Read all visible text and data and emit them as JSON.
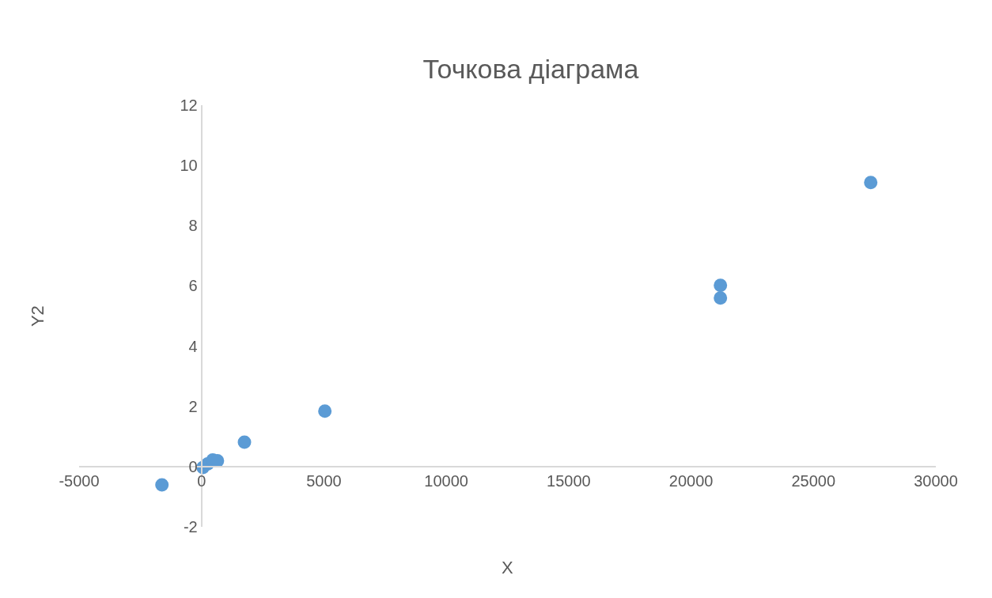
{
  "chart_data": {
    "type": "scatter",
    "title": "Точкова діаграма",
    "xlabel": "X",
    "ylabel": "Y2",
    "series": [
      {
        "color": "#5b9bd5",
        "x": [
          -1616,
          60,
          250,
          460,
          650,
          1755,
          5040,
          21200,
          21200,
          27340
        ],
        "values": [
          -0.61,
          -0.03,
          0.09,
          0.22,
          0.19,
          0.81,
          1.84,
          6.02,
          5.6,
          9.43
        ]
      }
    ],
    "xlim": [
      -5000,
      30000
    ],
    "xticks": [
      -5000,
      0,
      5000,
      10000,
      15000,
      20000,
      25000,
      30000
    ],
    "ylim": [
      -2,
      12
    ],
    "yticks": [
      -2,
      0,
      2,
      4,
      6,
      8,
      10,
      12
    ],
    "grid": false,
    "marker": "circle"
  }
}
